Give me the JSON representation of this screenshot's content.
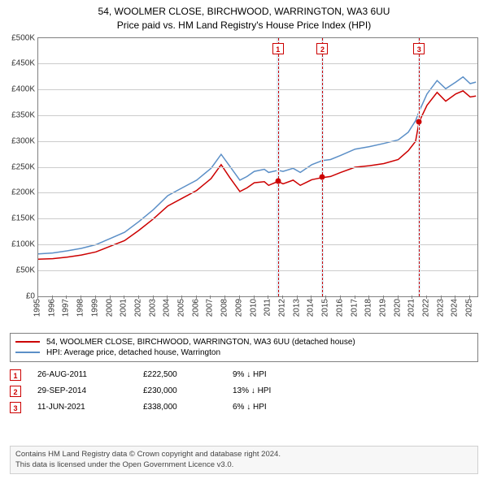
{
  "title": {
    "line1": "54, WOOLMER CLOSE, BIRCHWOOD, WARRINGTON, WA3 6UU",
    "line2": "Price paid vs. HM Land Registry's House Price Index (HPI)"
  },
  "chart": {
    "type": "line",
    "background_color": "#ffffff",
    "grid_color": "#cccccc",
    "border_color": "#808080",
    "y": {
      "min": 0,
      "max": 500000,
      "ticks": [
        0,
        50000,
        100000,
        150000,
        200000,
        250000,
        300000,
        350000,
        400000,
        450000,
        500000
      ],
      "labels": [
        "£0",
        "£50K",
        "£100K",
        "£150K",
        "£200K",
        "£250K",
        "£300K",
        "£350K",
        "£400K",
        "£450K",
        "£500K"
      ],
      "label_fontsize": 10
    },
    "x": {
      "min": 1995,
      "max": 2025.5,
      "ticks": [
        1995,
        1996,
        1997,
        1998,
        1999,
        2000,
        2001,
        2002,
        2003,
        2004,
        2005,
        2006,
        2007,
        2008,
        2009,
        2010,
        2011,
        2012,
        2013,
        2014,
        2015,
        2016,
        2017,
        2018,
        2019,
        2020,
        2021,
        2022,
        2023,
        2024,
        2025
      ],
      "label_fontsize": 10
    },
    "series": [
      {
        "name": "property",
        "label": "54, WOOLMER CLOSE, BIRCHWOOD, WARRINGTON, WA3 6UU (detached house)",
        "color": "#cc0000",
        "line_width": 1.5,
        "points": [
          [
            1995,
            72000
          ],
          [
            1996,
            73000
          ],
          [
            1997,
            76000
          ],
          [
            1998,
            80000
          ],
          [
            1999,
            86000
          ],
          [
            2000,
            97000
          ],
          [
            2001,
            108000
          ],
          [
            2002,
            128000
          ],
          [
            2003,
            150000
          ],
          [
            2004,
            175000
          ],
          [
            2005,
            190000
          ],
          [
            2006,
            205000
          ],
          [
            2007,
            228000
          ],
          [
            2007.7,
            255000
          ],
          [
            2008.3,
            230000
          ],
          [
            2009,
            203000
          ],
          [
            2009.5,
            210000
          ],
          [
            2010,
            220000
          ],
          [
            2010.7,
            222000
          ],
          [
            2011,
            215000
          ],
          [
            2011.65,
            222500
          ],
          [
            2012,
            218000
          ],
          [
            2012.7,
            225000
          ],
          [
            2013.2,
            215000
          ],
          [
            2014,
            226000
          ],
          [
            2014.74,
            230000
          ],
          [
            2015.3,
            232000
          ],
          [
            2016,
            240000
          ],
          [
            2017,
            250000
          ],
          [
            2018,
            253000
          ],
          [
            2019,
            257000
          ],
          [
            2020,
            265000
          ],
          [
            2020.7,
            282000
          ],
          [
            2021.2,
            300000
          ],
          [
            2021.45,
            338000
          ],
          [
            2022,
            370000
          ],
          [
            2022.7,
            395000
          ],
          [
            2023.3,
            378000
          ],
          [
            2024,
            392000
          ],
          [
            2024.5,
            398000
          ],
          [
            2025,
            386000
          ],
          [
            2025.4,
            388000
          ]
        ]
      },
      {
        "name": "hpi",
        "label": "HPI: Average price, detached house, Warrington",
        "color": "#5b8fc7",
        "line_width": 1.5,
        "points": [
          [
            1995,
            82000
          ],
          [
            1996,
            84000
          ],
          [
            1997,
            88000
          ],
          [
            1998,
            93000
          ],
          [
            1999,
            100000
          ],
          [
            2000,
            112000
          ],
          [
            2001,
            124000
          ],
          [
            2002,
            145000
          ],
          [
            2003,
            168000
          ],
          [
            2004,
            195000
          ],
          [
            2005,
            210000
          ],
          [
            2006,
            225000
          ],
          [
            2007,
            248000
          ],
          [
            2007.7,
            275000
          ],
          [
            2008.3,
            252000
          ],
          [
            2009,
            225000
          ],
          [
            2009.5,
            232000
          ],
          [
            2010,
            242000
          ],
          [
            2010.7,
            246000
          ],
          [
            2011,
            240000
          ],
          [
            2011.65,
            244000
          ],
          [
            2012,
            242000
          ],
          [
            2012.7,
            248000
          ],
          [
            2013.2,
            240000
          ],
          [
            2014,
            255000
          ],
          [
            2014.74,
            263000
          ],
          [
            2015.3,
            265000
          ],
          [
            2016,
            273000
          ],
          [
            2017,
            285000
          ],
          [
            2018,
            290000
          ],
          [
            2019,
            296000
          ],
          [
            2020,
            303000
          ],
          [
            2020.7,
            318000
          ],
          [
            2021.2,
            340000
          ],
          [
            2021.45,
            358000
          ],
          [
            2022,
            392000
          ],
          [
            2022.7,
            418000
          ],
          [
            2023.3,
            402000
          ],
          [
            2024,
            415000
          ],
          [
            2024.5,
            425000
          ],
          [
            2025,
            412000
          ],
          [
            2025.4,
            415000
          ]
        ]
      }
    ],
    "events": [
      {
        "n": "1",
        "year": 2011.65,
        "date": "26-AUG-2011",
        "price": "£222,500",
        "diff": "9% ↓ HPI",
        "line_color": "#cc0000",
        "band": {
          "from": 2011.55,
          "to": 2011.75,
          "color": "#e3edf5"
        }
      },
      {
        "n": "2",
        "year": 2014.74,
        "date": "29-SEP-2014",
        "price": "£230,000",
        "diff": "13% ↓ HPI",
        "line_color": "#cc0000",
        "band": {
          "from": 2014.64,
          "to": 2014.84,
          "color": "#e3edf5"
        }
      },
      {
        "n": "3",
        "year": 2021.45,
        "date": "11-JUN-2021",
        "price": "£338,000",
        "diff": "6% ↓ HPI",
        "line_color": "#cc0000",
        "band": {
          "from": 2021.35,
          "to": 2021.55,
          "color": "#e3edf5"
        }
      }
    ],
    "markers": [
      {
        "series": "property",
        "year": 2011.65,
        "value": 222500,
        "color": "#cc0000"
      },
      {
        "series": "property",
        "year": 2014.74,
        "value": 230000,
        "color": "#cc0000"
      },
      {
        "series": "property",
        "year": 2021.45,
        "value": 338000,
        "color": "#cc0000"
      }
    ]
  },
  "legend": {
    "items": [
      {
        "color": "#cc0000",
        "text": "54, WOOLMER CLOSE, BIRCHWOOD, WARRINGTON, WA3 6UU (detached house)"
      },
      {
        "color": "#5b8fc7",
        "text": "HPI: Average price, detached house, Warrington"
      }
    ]
  },
  "footer": {
    "line1": "Contains HM Land Registry data © Crown copyright and database right 2024.",
    "line2": "This data is licensed under the Open Government Licence v3.0."
  }
}
